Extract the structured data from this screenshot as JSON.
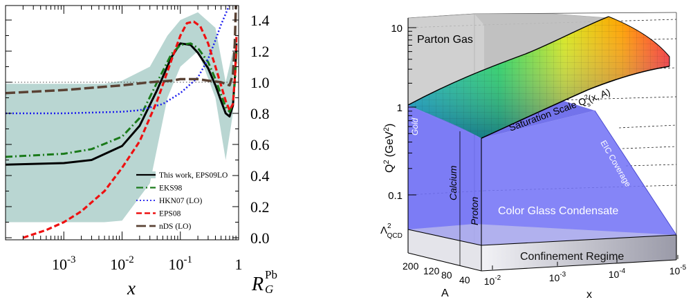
{
  "colors": {
    "band": "#b9d6d2",
    "this_work": "#000000",
    "eks98": "#1a7a1a",
    "hkn07": "#1a1aee",
    "eps08": "#ee1111",
    "nds": "#5a4234",
    "regime_blue": "#6d6df2",
    "parton_gray": "#c6c6c6"
  },
  "chart_data": [
    {
      "type": "line",
      "xlabel": "x",
      "ylabel_main": "R",
      "ylabel_sub": "G",
      "ylabel_sup": "Pb",
      "x_scale": "log",
      "xlim": [
        0.0001,
        1
      ],
      "ylim": [
        0,
        1.5
      ],
      "x_ticks": [
        {
          "value": 0.001,
          "base": "10",
          "exp": "-3"
        },
        {
          "value": 0.01,
          "base": "10",
          "exp": "-2"
        },
        {
          "value": 0.1,
          "base": "10",
          "exp": "-1"
        },
        {
          "value": 1,
          "base": "1",
          "exp": ""
        }
      ],
      "y_ticks": [
        "0.0",
        "0.2",
        "0.4",
        "0.6",
        "0.8",
        "1.0",
        "1.2",
        "1.4"
      ],
      "y_tick_values": [
        0,
        0.2,
        0.4,
        0.6,
        0.8,
        1.0,
        1.2,
        1.4
      ],
      "reference_line": 1.0,
      "legend_position": "bottom-right",
      "band": {
        "name": "This work, EPS09LO",
        "x": [
          0.0001,
          0.001,
          0.005,
          0.01,
          0.03,
          0.06,
          0.1,
          0.2,
          0.4,
          0.6,
          0.8
        ],
        "upper": [
          0.99,
          0.99,
          0.99,
          1.01,
          1.1,
          1.3,
          1.4,
          1.45,
          1.35,
          1.0,
          1.2
        ],
        "lower": [
          0.1,
          0.1,
          0.1,
          0.11,
          0.35,
          0.9,
          1.1,
          1.2,
          0.9,
          0.5,
          0.8
        ]
      },
      "series": [
        {
          "name": "This work, EPS09LO",
          "style": "solid",
          "color_key": "this_work",
          "x": [
            0.0001,
            0.001,
            0.003,
            0.01,
            0.02,
            0.04,
            0.07,
            0.1,
            0.15,
            0.2,
            0.3,
            0.4,
            0.5,
            0.6,
            0.7,
            0.8,
            0.87,
            0.92
          ],
          "y": [
            0.47,
            0.48,
            0.5,
            0.59,
            0.72,
            0.95,
            1.16,
            1.25,
            1.24,
            1.19,
            1.09,
            0.98,
            0.88,
            0.8,
            0.78,
            0.85,
            1.05,
            1.25
          ]
        },
        {
          "name": "EKS98",
          "style": "dashdot",
          "color_key": "eks98",
          "x": [
            0.0001,
            0.001,
            0.003,
            0.01,
            0.02,
            0.04,
            0.07,
            0.1,
            0.15,
            0.2,
            0.3,
            0.4,
            0.5,
            0.6,
            0.7,
            0.8,
            0.87,
            0.92
          ],
          "y": [
            0.52,
            0.54,
            0.57,
            0.65,
            0.77,
            1.0,
            1.18,
            1.24,
            1.25,
            1.22,
            1.13,
            1.02,
            0.92,
            0.84,
            0.81,
            0.86,
            1.02,
            1.2
          ]
        },
        {
          "name": "HKN07 (LO)",
          "style": "dotted",
          "color_key": "hkn07",
          "x": [
            0.0001,
            0.001,
            0.01,
            0.02,
            0.05,
            0.1,
            0.2,
            0.3,
            0.4,
            0.5,
            0.6,
            0.7
          ],
          "y": [
            0.8,
            0.8,
            0.81,
            0.82,
            0.86,
            0.93,
            1.03,
            1.15,
            1.27,
            1.37,
            1.44,
            1.5
          ]
        },
        {
          "name": "EPS08",
          "style": "dashed",
          "color_key": "eps08",
          "x": [
            0.0002,
            0.0005,
            0.001,
            0.002,
            0.005,
            0.01,
            0.02,
            0.04,
            0.07,
            0.1,
            0.13,
            0.17,
            0.22,
            0.3,
            0.4,
            0.5,
            0.6,
            0.7,
            0.8,
            0.87,
            0.92
          ],
          "y": [
            0.0,
            0.05,
            0.1,
            0.17,
            0.3,
            0.45,
            0.62,
            0.88,
            1.14,
            1.3,
            1.38,
            1.39,
            1.36,
            1.25,
            1.1,
            0.98,
            0.88,
            0.82,
            0.86,
            1.05,
            1.3
          ]
        },
        {
          "name": "nDS (LO)",
          "style": "longdash",
          "color_key": "nds",
          "x": [
            0.0001,
            0.001,
            0.01,
            0.03,
            0.07,
            0.1,
            0.2,
            0.3,
            0.5,
            0.7,
            0.8,
            0.86,
            0.9
          ],
          "y": [
            0.93,
            0.95,
            0.98,
            1.0,
            1.01,
            1.02,
            1.02,
            1.01,
            1.0,
            0.98,
            1.05,
            1.25,
            1.5
          ]
        }
      ]
    },
    {
      "type": "diagram-3d",
      "y_axis_label": "Q",
      "y_axis_sup": "2",
      "y_axis_unit": "(GeV",
      "y_axis_unit_sup": "2",
      "y_axis_unit_close": ")",
      "y_ticks": [
        {
          "label": "10",
          "value": 10
        },
        {
          "label": "1",
          "value": 1
        },
        {
          "label": "0.1",
          "value": 0.1
        }
      ],
      "lambda_label": "Λ",
      "lambda_sup": "2",
      "lambda_sub": "QCD",
      "a_axis_label": "A",
      "a_ticks": [
        "200",
        "120",
        "80",
        "40"
      ],
      "x_axis_label": "x",
      "x_ticks": [
        {
          "base": "10",
          "exp": "-2"
        },
        {
          "base": "10",
          "exp": "-3"
        },
        {
          "base": "10",
          "exp": "-4"
        },
        {
          "base": "10",
          "exp": "-5"
        }
      ],
      "region_labels": {
        "parton_gas": "Parton Gas",
        "saturation_prefix": "Saturation Scale Q",
        "saturation_sub": "s",
        "saturation_sup": "2",
        "saturation_suffix": "(x, A)",
        "cgc": "Color Glass Condensate",
        "confinement": "Confinement Regime",
        "eic": "EIC Coverage",
        "gold": "Gold",
        "calcium": "Calcium",
        "proton": "Proton"
      }
    }
  ]
}
